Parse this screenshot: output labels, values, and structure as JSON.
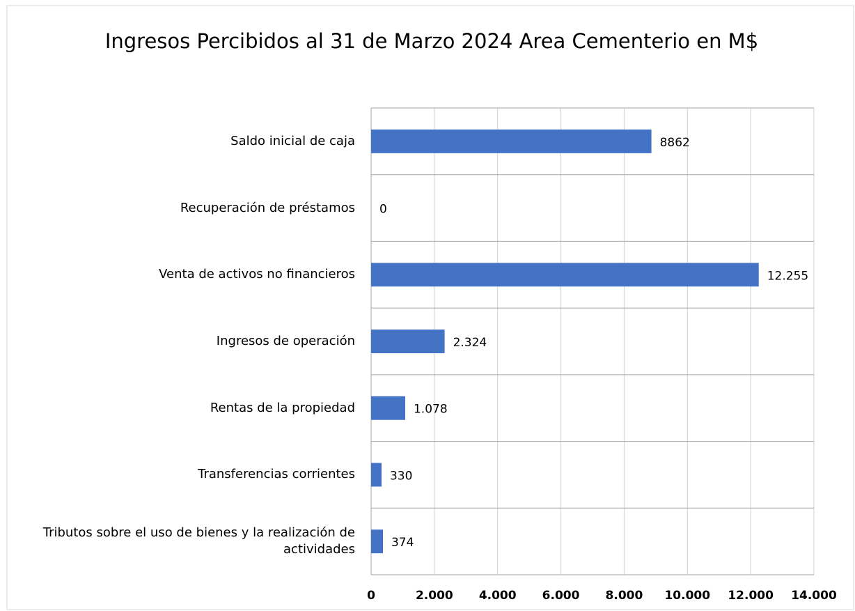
{
  "chart_data": {
    "type": "bar",
    "orientation": "horizontal",
    "title": "Ingresos Percibidos al 31 de Marzo 2024 Area Cementerio en M$",
    "categories": [
      "Saldo inicial de caja",
      "Recuperación de préstamos",
      "Venta de activos no financieros",
      "Ingresos de operación",
      "Rentas de la propiedad",
      "Transferencias corrientes",
      "Tributos sobre el uso de bienes y la realización de actividades"
    ],
    "values": [
      8862,
      0,
      12255,
      2324,
      1078,
      330,
      374
    ],
    "value_labels": [
      "8862",
      "0",
      "12.255",
      "2.324",
      "1.078",
      "330",
      "374"
    ],
    "color": "#4472c4",
    "xlim": [
      0,
      14000
    ],
    "xticks": [
      0,
      {
        "value": 2000,
        "label": "2.000"
      },
      {
        "value": 4000,
        "label": "4.000"
      },
      {
        "value": 6000,
        "label": "6.000"
      },
      {
        "value": 8000,
        "label": "8.000"
      },
      {
        "value": 10000,
        "label": "10.000"
      },
      {
        "value": 12000,
        "label": "12.000"
      },
      {
        "value": 14000,
        "label": "14.000"
      }
    ],
    "grid": true
  }
}
